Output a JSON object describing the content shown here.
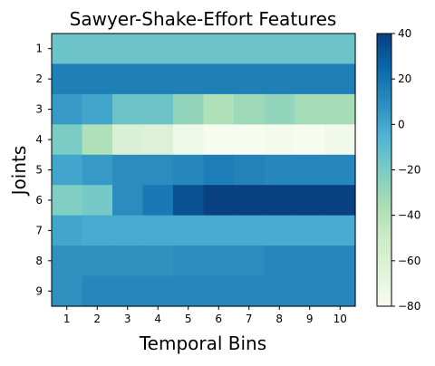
{
  "chart_data": {
    "type": "heatmap",
    "title": "Sawyer-Shake-Effort Features",
    "xlabel": "Temporal Bins",
    "ylabel": "Joints",
    "x_categories": [
      "1",
      "2",
      "3",
      "4",
      "5",
      "6",
      "7",
      "8",
      "9",
      "10"
    ],
    "y_categories": [
      "1",
      "2",
      "3",
      "4",
      "5",
      "6",
      "7",
      "8",
      "9"
    ],
    "values": [
      [
        -15,
        -15,
        -15,
        -15,
        -15,
        -15,
        -15,
        -15,
        -15,
        -15
      ],
      [
        15,
        15,
        15,
        15,
        15,
        15,
        15,
        15,
        15,
        15
      ],
      [
        5,
        0,
        -15,
        -15,
        -28,
        -38,
        -32,
        -28,
        -34,
        -34
      ],
      [
        -20,
        -38,
        -60,
        -62,
        -74,
        -80,
        -80,
        -78,
        -80,
        -76
      ],
      [
        0,
        5,
        10,
        10,
        12,
        16,
        14,
        12,
        12,
        12
      ],
      [
        -22,
        -18,
        10,
        18,
        34,
        40,
        40,
        40,
        40,
        40
      ],
      [
        0,
        -2,
        -2,
        -2,
        -2,
        -2,
        -2,
        -2,
        -2,
        -2
      ],
      [
        8,
        8,
        8,
        8,
        10,
        10,
        10,
        12,
        12,
        12
      ],
      [
        8,
        12,
        12,
        12,
        12,
        12,
        12,
        12,
        12,
        12
      ]
    ],
    "colormap": "GnBu",
    "colorbar": {
      "vmin": -80,
      "vmax": 40,
      "ticks": [
        40,
        20,
        0,
        -20,
        -40,
        -60,
        -80
      ],
      "tick_labels": [
        "40",
        "20",
        "0",
        "−20",
        "−40",
        "−60",
        "−80"
      ]
    },
    "grid": false,
    "legend": "none"
  }
}
